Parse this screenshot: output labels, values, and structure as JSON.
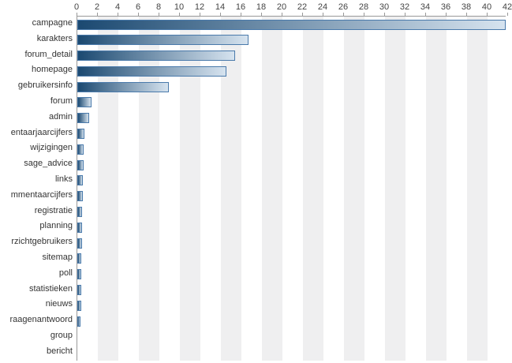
{
  "chart_data": {
    "type": "bar",
    "orientation": "horizontal",
    "title": "",
    "xlabel": "",
    "ylabel": "",
    "axis_position": "top",
    "xlim": [
      0,
      41.8
    ],
    "x_ticks": [
      0,
      2,
      4,
      6,
      8,
      10,
      12,
      14,
      16,
      18,
      20,
      22,
      24,
      26,
      28,
      30,
      32,
      34,
      36,
      38,
      40,
      42
    ],
    "categories": [
      "campagne",
      "karakters",
      "forum_detail",
      "homepage",
      "gebruikersinfo",
      "forum",
      "admin",
      "entaarjaarcijfers",
      "wijzigingen",
      "sage_advice",
      "links",
      "mmentaarcijfers",
      "registratie",
      "planning",
      "rzichtgebruikers",
      "sitemap",
      "poll",
      "statistieken",
      "nieuws",
      "raagenantwoord",
      "group",
      "bericht"
    ],
    "values": [
      41.6,
      16.5,
      15.2,
      14.4,
      8.8,
      1.2,
      1.0,
      0.5,
      0.45,
      0.45,
      0.4,
      0.4,
      0.3,
      0.3,
      0.3,
      0.25,
      0.2,
      0.2,
      0.2,
      0.15,
      0,
      0
    ],
    "grid": "vertical-bands",
    "legend": "none",
    "colors": {
      "bar_gradient_start": "#1b4971",
      "bar_gradient_end": "#d6e3ef",
      "bar_border": "#4a7aab",
      "stripe_light": "#ffffff",
      "stripe_dark": "#efeff0",
      "axis_line": "#999999",
      "tick_text": "#444444",
      "label_text": "#333333"
    }
  }
}
